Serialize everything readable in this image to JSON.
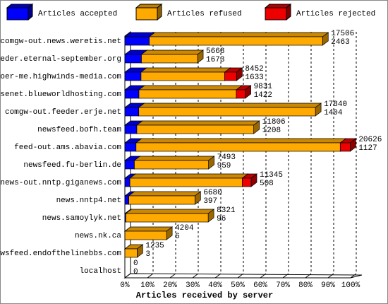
{
  "chart_data": {
    "type": "bar3d-stacked-horizontal",
    "x_label": "Articles received by server",
    "categories": [
      "comgw-out.news.weretis.net",
      "feeder.eternal-september.org",
      "voer-me.highwinds-media.com",
      "usenet.blueworldhosting.com",
      "comgw-out.feeder.erje.net",
      "newsfeed.bofh.team",
      "feed-out.ams.abavia.com",
      "newsfeed.fu-berlin.de",
      "news-out.nntp.giganews.com",
      "news.nntp4.net",
      "news.samoylyk.net",
      "news.nk.ca",
      "newsfeed.endofthelinebbs.com",
      "localhost"
    ],
    "series": [
      {
        "name": "Articles accepted",
        "color": "#0000ff",
        "values": [
          2463,
          1673,
          1633,
          1422,
          1404,
          1208,
          1127,
          959,
          508,
          397,
          96,
          6,
          3,
          0
        ]
      },
      {
        "name": "Articles refused",
        "color": "#ffaa00",
        "values": [
          17506,
          5668,
          8452,
          9831,
          17840,
          11806,
          20626,
          7493,
          11345,
          6680,
          8321,
          4204,
          1235,
          0
        ]
      },
      {
        "name": "Articles rejected",
        "color": "#ee0000",
        "values": [
          0,
          0,
          1200,
          900,
          0,
          0,
          1000,
          0,
          900,
          0,
          0,
          0,
          0,
          0
        ]
      }
    ],
    "xlim": [
      0,
      22800
    ],
    "xticks": [
      {
        "value": 0,
        "label": "0%"
      },
      {
        "value": 2280,
        "label": "10%"
      },
      {
        "value": 4560,
        "label": "20%"
      },
      {
        "value": 6840,
        "label": "30%"
      },
      {
        "value": 9120,
        "label": "40%"
      },
      {
        "value": 11400,
        "label": "50%"
      },
      {
        "value": 13680,
        "label": "60%"
      },
      {
        "value": 15960,
        "label": "70%"
      },
      {
        "value": 18240,
        "label": "80%"
      },
      {
        "value": 20520,
        "label": "90%"
      },
      {
        "value": 22800,
        "label": "100%"
      }
    ],
    "grid": true
  }
}
